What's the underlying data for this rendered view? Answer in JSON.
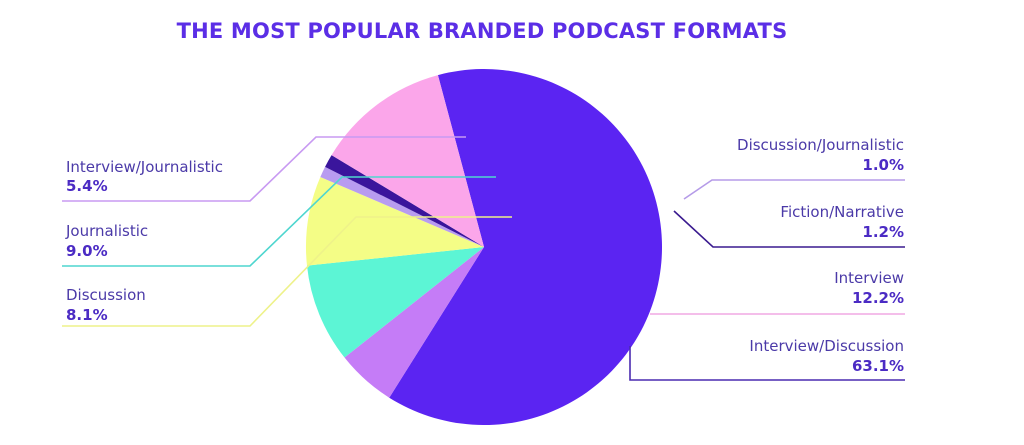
{
  "chart_data": {
    "type": "pie",
    "title": "THE MOST POPULAR BRANDED PODCAST FORMATS",
    "slices": [
      {
        "label": "Interview/Discussion",
        "value": 63.1,
        "display": "63.1%",
        "color": "#5b24f2",
        "leader_color": "#4a2bb0"
      },
      {
        "label": "Interview/Journalistic",
        "value": 5.4,
        "display": "5.4%",
        "color": "#c57cf7",
        "leader_color": "#c89af2"
      },
      {
        "label": "Journalistic",
        "value": 9.0,
        "display": "9.0%",
        "color": "#5cf5d5",
        "leader_color": "#4fd6cf"
      },
      {
        "label": "Discussion",
        "value": 8.1,
        "display": "8.1%",
        "color": "#f4fd86",
        "leader_color": "#eef28a"
      },
      {
        "label": "Discussion/Journalistic",
        "value": 1.0,
        "display": "1.0%",
        "color": "#b89cf0",
        "leader_color": "#b59be8"
      },
      {
        "label": "Fiction/Narrative",
        "value": 1.2,
        "display": "1.2%",
        "color": "#3a159c",
        "leader_color": "#3a1a8f"
      },
      {
        "label": "Interview",
        "value": 12.2,
        "display": "12.2%",
        "color": "#fba6ea",
        "leader_color": "#f0a8e4"
      }
    ],
    "legend": "none"
  }
}
